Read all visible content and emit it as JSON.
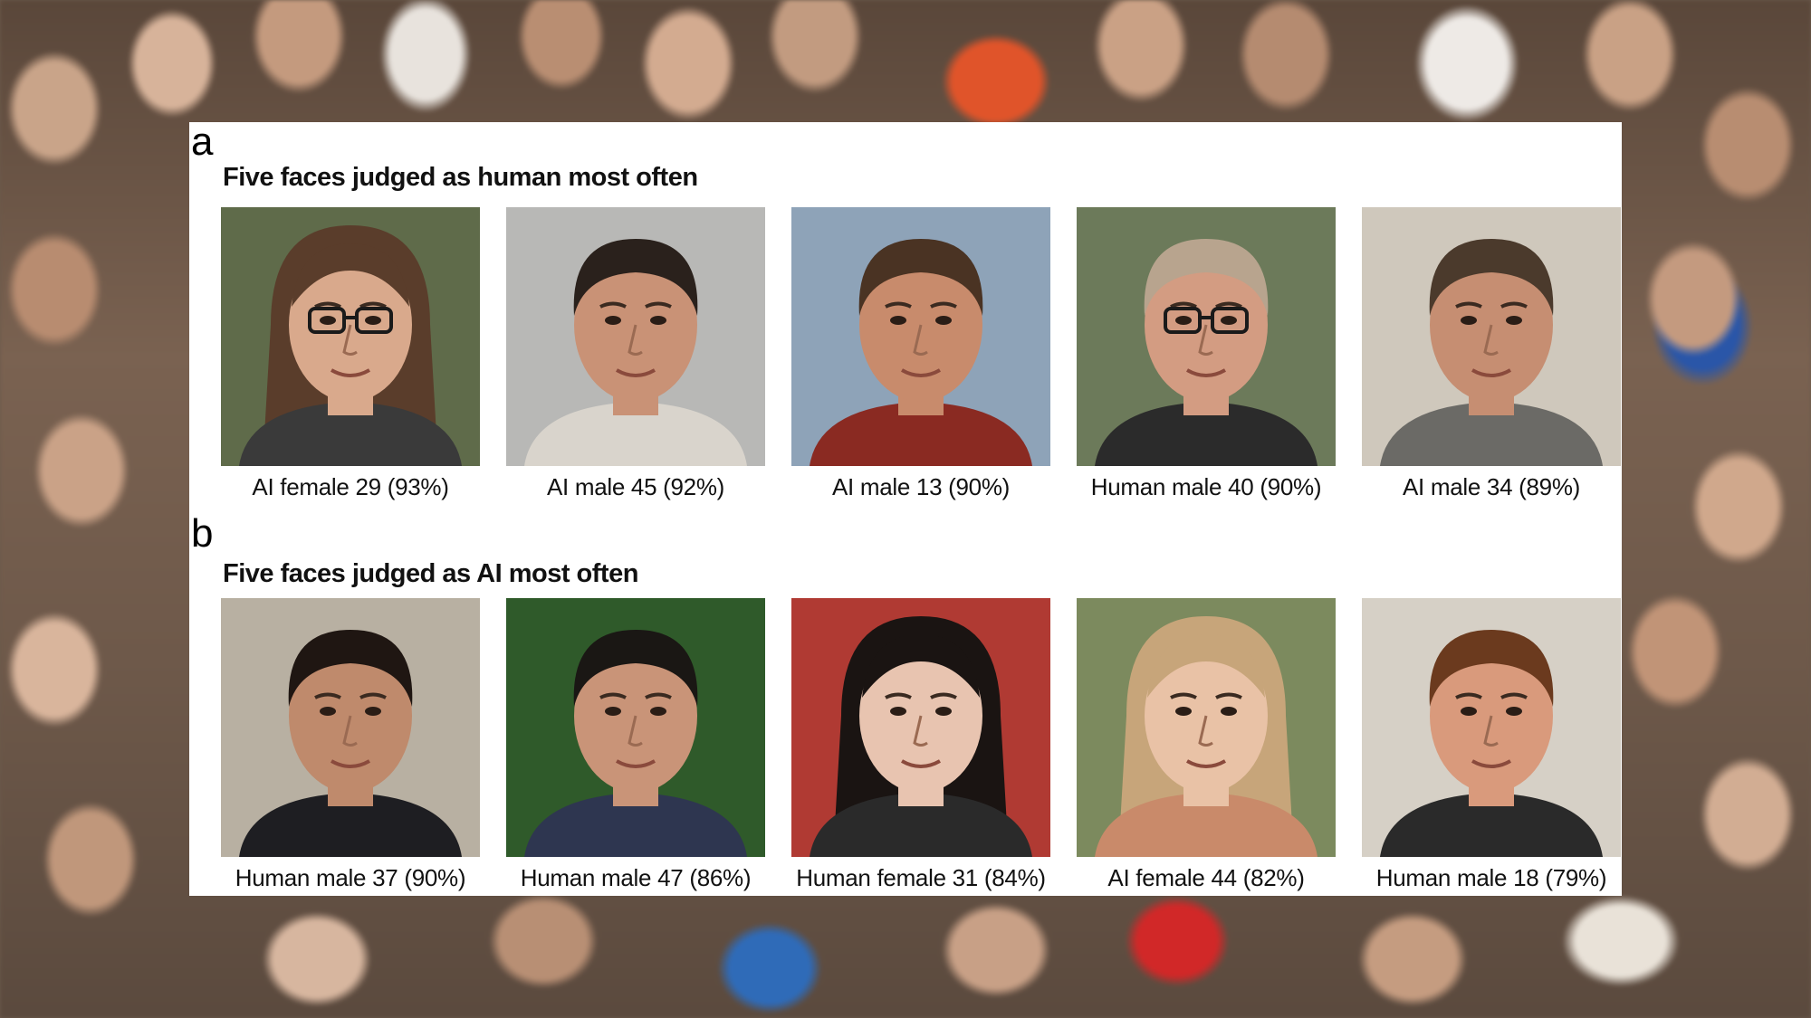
{
  "panels": [
    {
      "letter": "a",
      "title": "Five faces judged as human most often",
      "faces": [
        {
          "caption": "AI female 29 (93%)",
          "bg": "#5f6b4a",
          "skin": "#d9a98c",
          "hair": "#5a3d2b",
          "shirt": "#3a3a3a",
          "glasses": true,
          "long_hair": true
        },
        {
          "caption": "AI male 45 (92%)",
          "bg": "#b8b8b6",
          "skin": "#c99276",
          "hair": "#2a211c",
          "shirt": "#d9d4cc",
          "glasses": false,
          "long_hair": false
        },
        {
          "caption": "AI male 13 (90%)",
          "bg": "#8ea3b8",
          "skin": "#c88b6c",
          "hair": "#4a3323",
          "shirt": "#8a2a22",
          "glasses": false,
          "long_hair": false
        },
        {
          "caption": "Human male 40 (90%)",
          "bg": "#6c7a5a",
          "skin": "#d39c82",
          "hair": "#b8a48e",
          "shirt": "#2b2b2b",
          "glasses": true,
          "long_hair": false
        },
        {
          "caption": "AI male 34 (89%)",
          "bg": "#cfc8bc",
          "skin": "#c68e72",
          "hair": "#4b3a2c",
          "shirt": "#6b6a66",
          "glasses": false,
          "long_hair": false
        }
      ]
    },
    {
      "letter": "b",
      "title": "Five faces judged as AI most often",
      "faces": [
        {
          "caption": "Human male 37 (90%)",
          "bg": "#b8b0a2",
          "skin": "#bf8a6c",
          "hair": "#1f1612",
          "shirt": "#1e1e22",
          "glasses": false,
          "long_hair": false
        },
        {
          "caption": "Human male 47 (86%)",
          "bg": "#2f5a2a",
          "skin": "#c99478",
          "hair": "#1a1714",
          "shirt": "#2e3650",
          "glasses": false,
          "long_hair": false
        },
        {
          "caption": "Human female 31 (84%)",
          "bg": "#b03a33",
          "skin": "#e8c4b0",
          "hair": "#1a1412",
          "shirt": "#2a2a2a",
          "glasses": false,
          "long_hair": true
        },
        {
          "caption": "AI female 44 (82%)",
          "bg": "#7c8a5e",
          "skin": "#e9c2a6",
          "hair": "#c7a57a",
          "shirt": "#c98a6a",
          "glasses": false,
          "long_hair": true
        },
        {
          "caption": "Human male 18 (79%)",
          "bg": "#d6d0c6",
          "skin": "#d99a7c",
          "hair": "#6b3a1e",
          "shirt": "#2a2a2a",
          "glasses": false,
          "long_hair": false
        }
      ]
    }
  ]
}
